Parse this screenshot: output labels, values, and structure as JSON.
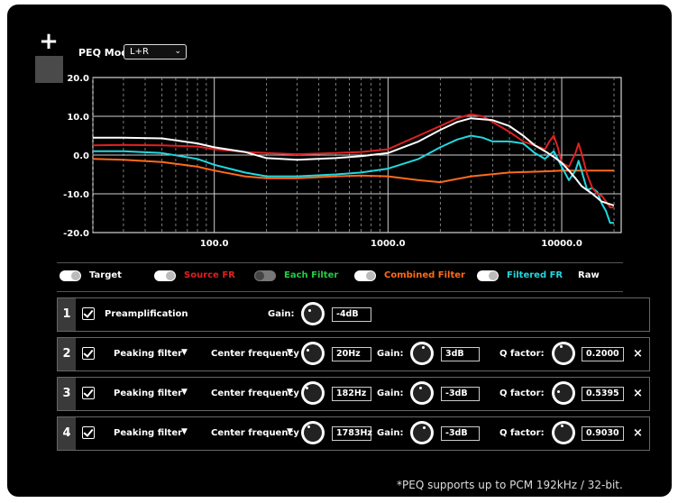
{
  "toolbar": {
    "add_label": "+"
  },
  "peq": {
    "mode_label": "PEQ Mode:",
    "mode_value": "L+R"
  },
  "chart_data": {
    "type": "line",
    "x_scale": "log",
    "xlim": [
      20,
      22000
    ],
    "ylim": [
      -20,
      20
    ],
    "y_ticks": [
      "20.0",
      "10.0",
      "0.0",
      "-10.0",
      "-20.0"
    ],
    "y_tick_values": [
      20,
      10,
      0,
      -10,
      -20
    ],
    "x_ticks": [
      "100.0",
      "1000.0",
      "10000.0"
    ],
    "x_tick_values": [
      100,
      1000,
      10000
    ],
    "grid": true,
    "series": [
      {
        "name": "Target",
        "color": "#ffffff",
        "x": [
          20,
          30,
          50,
          80,
          100,
          150,
          200,
          300,
          500,
          700,
          1000,
          1500,
          2000,
          2500,
          3000,
          4000,
          5000,
          6000,
          7000,
          8000,
          9000,
          10000,
          11000,
          12000,
          13000,
          15000,
          17000,
          20000
        ],
        "y": [
          4.5,
          4.5,
          4.3,
          3.0,
          2.0,
          0.8,
          -0.8,
          -1.2,
          -0.8,
          -0.3,
          0.5,
          3.5,
          6.5,
          8.5,
          9.5,
          9.0,
          7.5,
          5.0,
          2.5,
          1.0,
          -0.5,
          -2.0,
          -4.0,
          -6.0,
          -8.0,
          -10.0,
          -12.0,
          -13.0
        ]
      },
      {
        "name": "Source FR",
        "color": "#e02020",
        "x": [
          20,
          30,
          50,
          80,
          100,
          150,
          200,
          300,
          500,
          700,
          1000,
          1500,
          2000,
          2500,
          3000,
          3500,
          4000,
          5000,
          6000,
          7000,
          8000,
          8500,
          9000,
          9500,
          10000,
          11000,
          12000,
          12500,
          13000,
          14000,
          15000,
          16000,
          17000,
          18000,
          19000,
          20000
        ],
        "y": [
          2.5,
          2.6,
          2.5,
          2.2,
          1.5,
          0.8,
          0.5,
          0.2,
          0.5,
          0.8,
          1.5,
          5.0,
          7.5,
          9.5,
          10.5,
          10.0,
          8.5,
          6.0,
          3.5,
          2.5,
          1.5,
          3.5,
          5.0,
          2.0,
          -2.0,
          -3.0,
          0.5,
          3.0,
          0.5,
          -5.0,
          -8.5,
          -10.0,
          -10.5,
          -12.0,
          -13.5,
          -13.5
        ]
      },
      {
        "name": "Filtered FR",
        "color": "#22d8e0",
        "x": [
          20,
          30,
          50,
          80,
          100,
          150,
          200,
          300,
          500,
          700,
          1000,
          1500,
          2000,
          2500,
          3000,
          3500,
          4000,
          5000,
          6000,
          7000,
          8000,
          9000,
          10000,
          11000,
          12000,
          12500,
          13000,
          14000,
          15000,
          16000,
          17000,
          18000,
          19000,
          20000
        ],
        "y": [
          1.0,
          1.0,
          0.5,
          -1.0,
          -2.5,
          -4.5,
          -5.5,
          -5.5,
          -5.0,
          -4.5,
          -3.5,
          -1.0,
          2.0,
          4.0,
          5.0,
          4.5,
          3.5,
          3.5,
          3.0,
          0.5,
          -1.0,
          1.0,
          -3.0,
          -6.5,
          -4.0,
          -1.5,
          -4.0,
          -9.0,
          -8.5,
          -9.5,
          -12.5,
          -14.5,
          -17.5,
          -17.5
        ]
      },
      {
        "name": "Combined Filter",
        "color": "#ff6a1a",
        "x": [
          20,
          30,
          50,
          80,
          100,
          150,
          200,
          300,
          500,
          700,
          1000,
          1500,
          2000,
          3000,
          5000,
          8000,
          10000,
          15000,
          20000
        ],
        "y": [
          -1.0,
          -1.2,
          -1.8,
          -3.0,
          -4.0,
          -5.5,
          -6.0,
          -6.0,
          -5.5,
          -5.3,
          -5.5,
          -6.5,
          -7.0,
          -5.5,
          -4.5,
          -4.2,
          -4.0,
          -4.0,
          -4.0
        ]
      }
    ]
  },
  "legend": [
    {
      "label": "Target",
      "color": "#ffffff",
      "on": true
    },
    {
      "label": "Source FR",
      "color": "#e02020",
      "on": true
    },
    {
      "label": "Each Filter",
      "color": "#22cc44",
      "on": false
    },
    {
      "label": "Combined Filter",
      "color": "#ff6a1a",
      "on": true
    },
    {
      "label": "Filtered FR",
      "color": "#22d8e0",
      "on": true
    },
    {
      "label": "Raw",
      "color": "#ffffff"
    }
  ],
  "preamp": {
    "num": "1",
    "label": "Preamplification",
    "gain_label": "Gain:",
    "gain_value": "-4dB"
  },
  "filters": [
    {
      "num": "2",
      "type": "Peaking filter",
      "freq_label": "Center frequency",
      "freq_value": "20Hz",
      "gain_label": "Gain:",
      "gain_value": "3dB",
      "q_label": "Q factor:",
      "q_value": "0.2000",
      "remove": "×"
    },
    {
      "num": "3",
      "type": "Peaking filter",
      "freq_label": "Center frequency",
      "freq_value": "182Hz",
      "gain_label": "Gain:",
      "gain_value": "-3dB",
      "q_label": "Q factor:",
      "q_value": "0.5395",
      "remove": "×"
    },
    {
      "num": "4",
      "type": "Peaking filter",
      "freq_label": "Center frequency",
      "freq_value": "1783Hz",
      "gain_label": "Gain:",
      "gain_value": "-3dB",
      "q_label": "Q factor:",
      "q_value": "0.9030",
      "remove": "×"
    }
  ],
  "caret_glyph": "▼",
  "footnote": "*PEQ supports up to PCM 192kHz / 32-bit."
}
